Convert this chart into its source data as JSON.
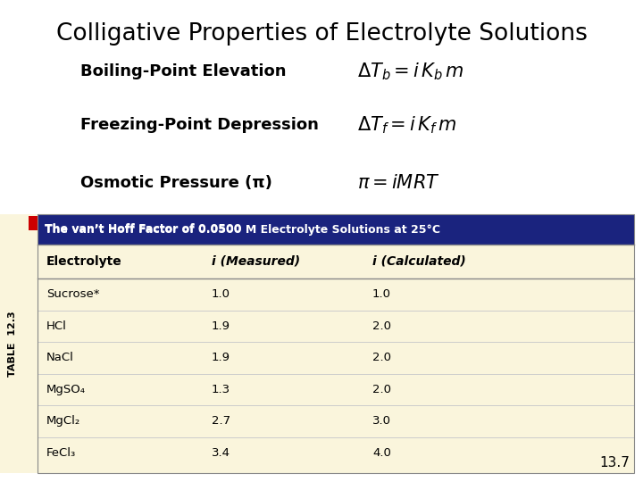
{
  "title": "Colligative Properties of Electrolyte Solutions",
  "background_color": "#ffffff",
  "table_header_bg": "#1a237e",
  "table_header_text": "#ffffff",
  "table_body_bg": "#faf5dc",
  "sidebar_bg": "#faf5dc",
  "red_square_color": "#cc0000",
  "sidebar_text": "TABLE  12.3",
  "table_title": "The van’t Hoff Factor of 0.0500 M Electrolyte Solutions at 25°C",
  "col_headers": [
    "Electrolyte",
    "i (Measured)",
    "i (Calculated)"
  ],
  "rows": [
    [
      "Sucrose*",
      "1.0",
      "1.0"
    ],
    [
      "HCl",
      "1.9",
      "2.0"
    ],
    [
      "NaCl",
      "1.9",
      "2.0"
    ],
    [
      "MgSO₄",
      "1.3",
      "2.0"
    ],
    [
      "MgCl₂",
      "2.7",
      "3.0"
    ],
    [
      "FeCl₃",
      "3.4",
      "4.0"
    ]
  ],
  "footnote": "13.7",
  "eq_labels": [
    "Boiling-Point Elevation",
    "Freezing-Point Depression",
    "Osmotic Pressure (π)"
  ],
  "eq_formulas": [
    "$\\Delta T_b = i\\,K_b\\,m$",
    "$\\Delta T_f = i\\,K_f\\,m$",
    "$\\pi = iMRT$"
  ],
  "title_fontsize": 19,
  "label_fontsize": 13,
  "formula_fontsize": 15,
  "table_header_fontsize": 9,
  "table_body_fontsize": 9.5
}
